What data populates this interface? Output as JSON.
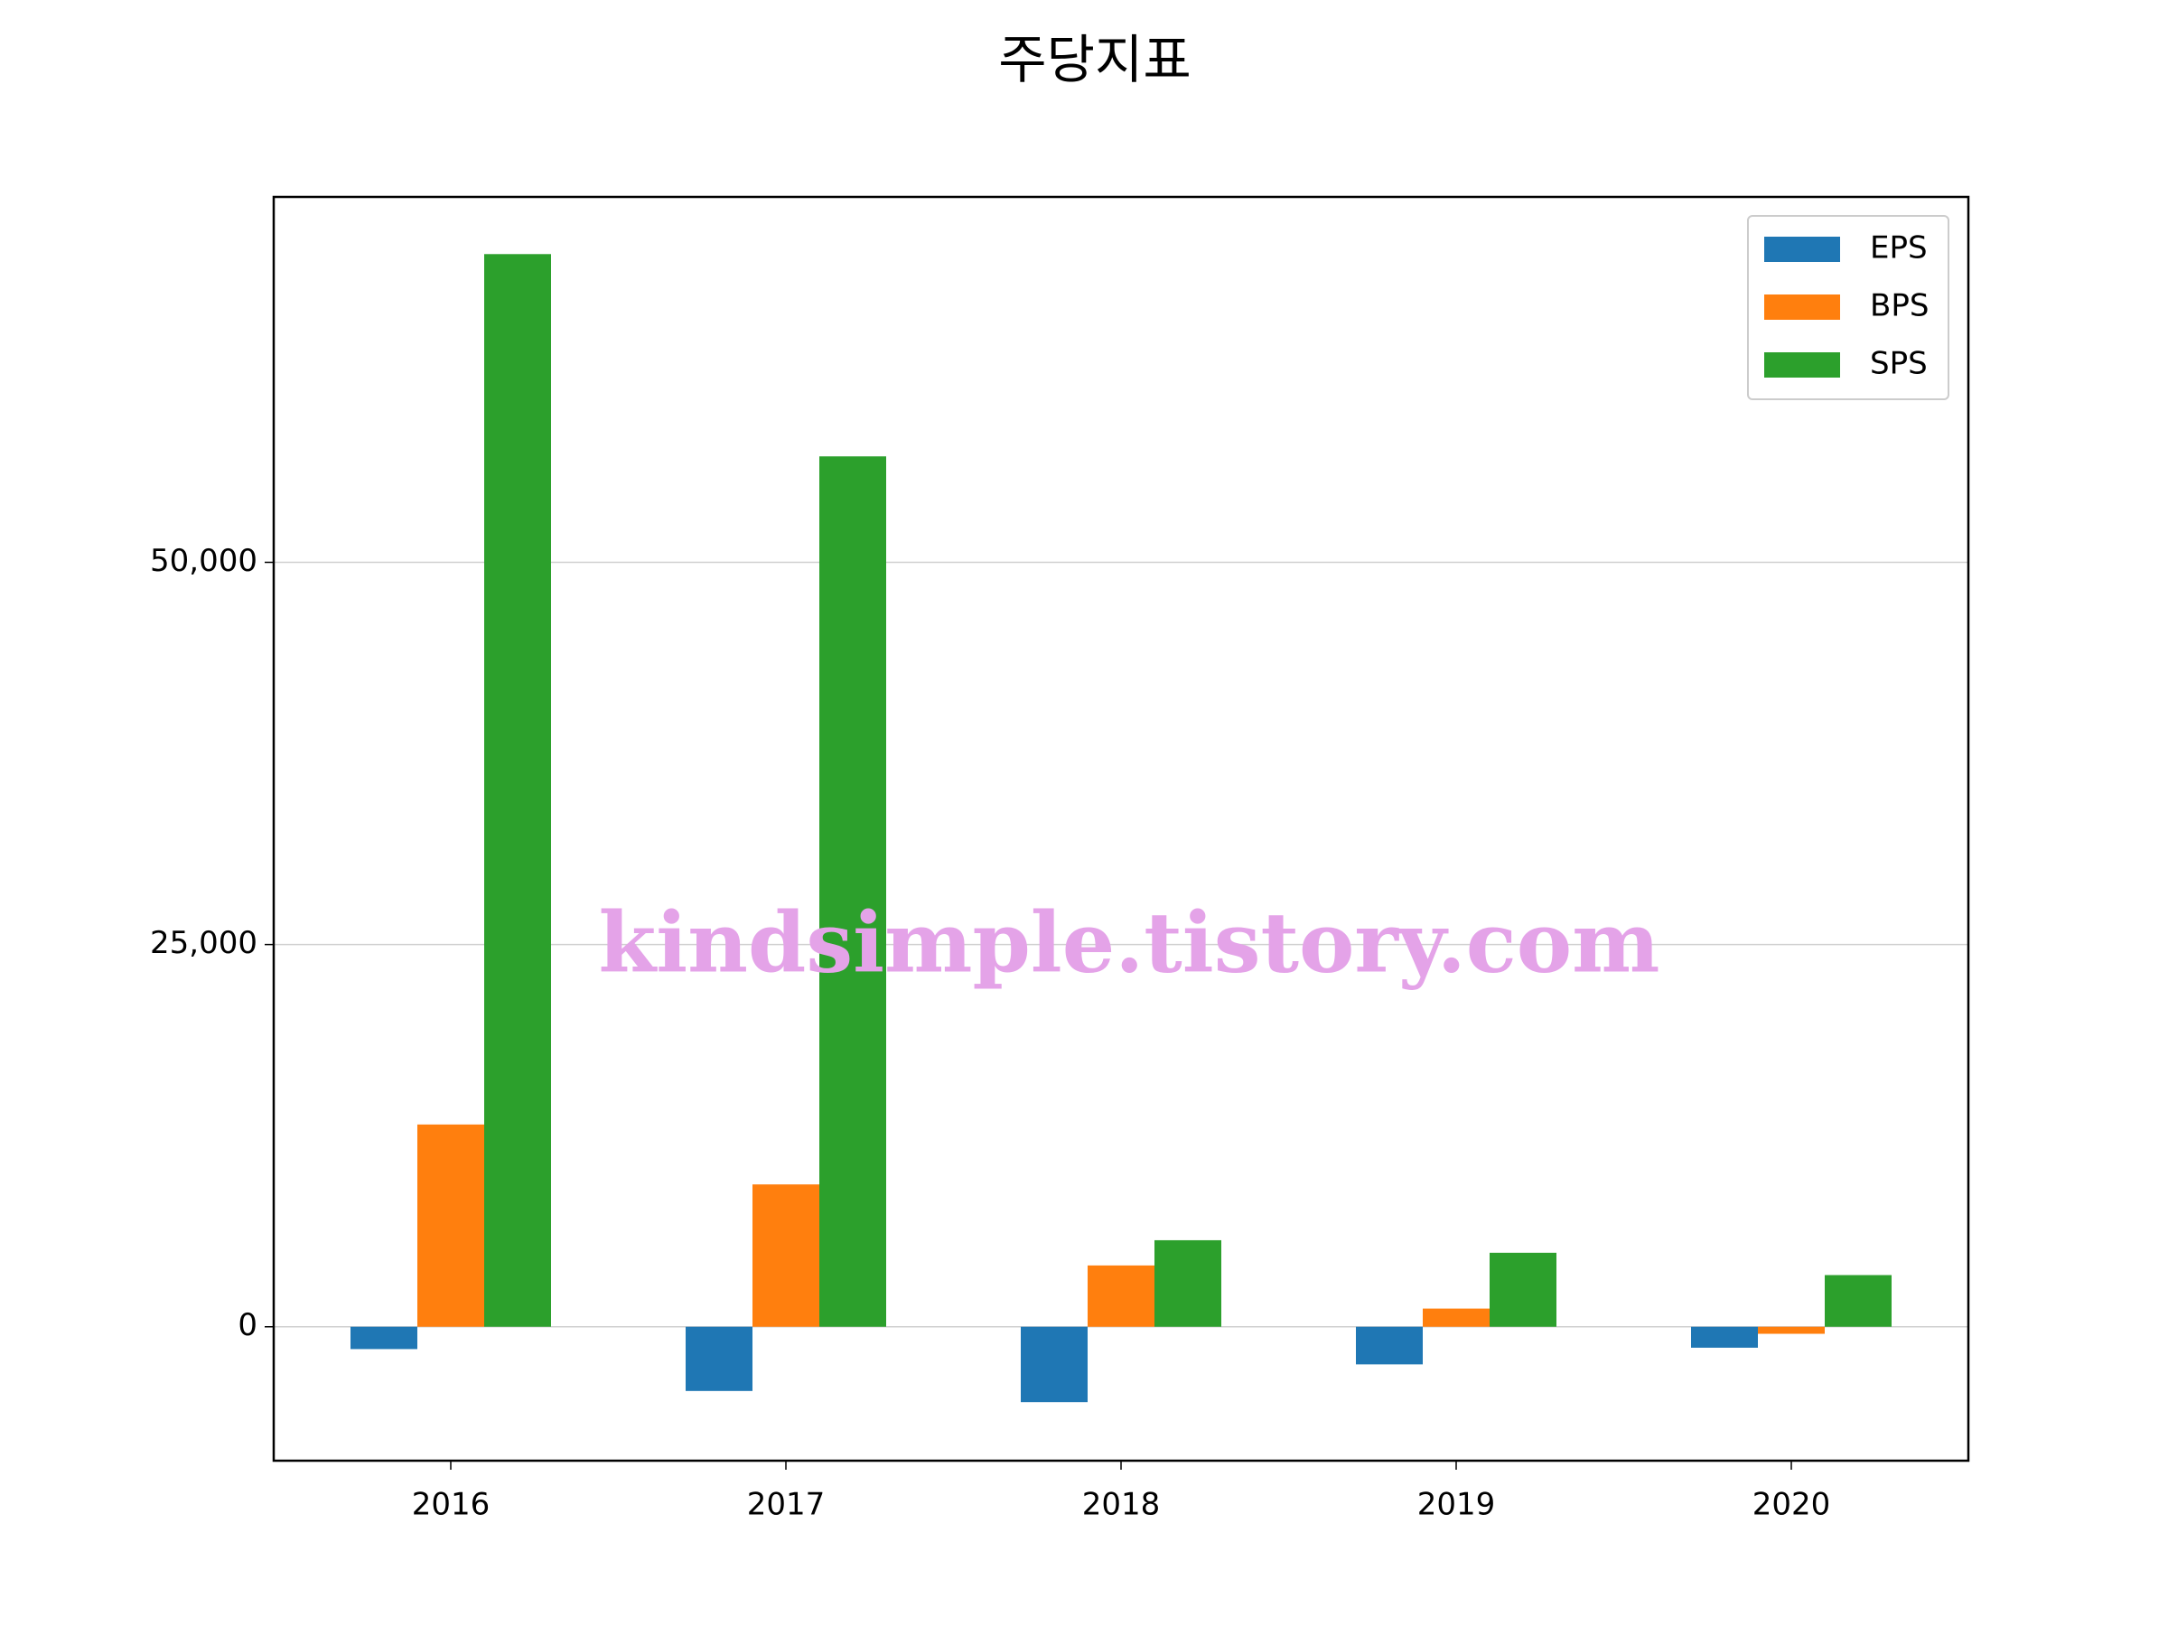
{
  "chart_data": {
    "type": "bar",
    "title": "주당지표",
    "categories": [
      "2016",
      "2017",
      "2018",
      "2019",
      "2020"
    ],
    "series": [
      {
        "name": "EPS",
        "color": "#1f77b4",
        "values": [
          -1460,
          -4200,
          -4930,
          -2460,
          -1370
        ]
      },
      {
        "name": "BPS",
        "color": "#ff7f0e",
        "values": [
          13230,
          9310,
          4010,
          1190,
          -460
        ]
      },
      {
        "name": "SPS",
        "color": "#2ca02c",
        "values": [
          70160,
          56930,
          5660,
          4840,
          3380
        ]
      }
    ],
    "ylim": [
      -8760,
      73900
    ],
    "yticks": [
      0,
      {
        "value": 25000,
        "label": "25,000"
      },
      {
        "value": 50000,
        "label": "50,000"
      }
    ],
    "grid": true,
    "legend": "upper right",
    "watermark": "kindsimple.tistory.com"
  }
}
